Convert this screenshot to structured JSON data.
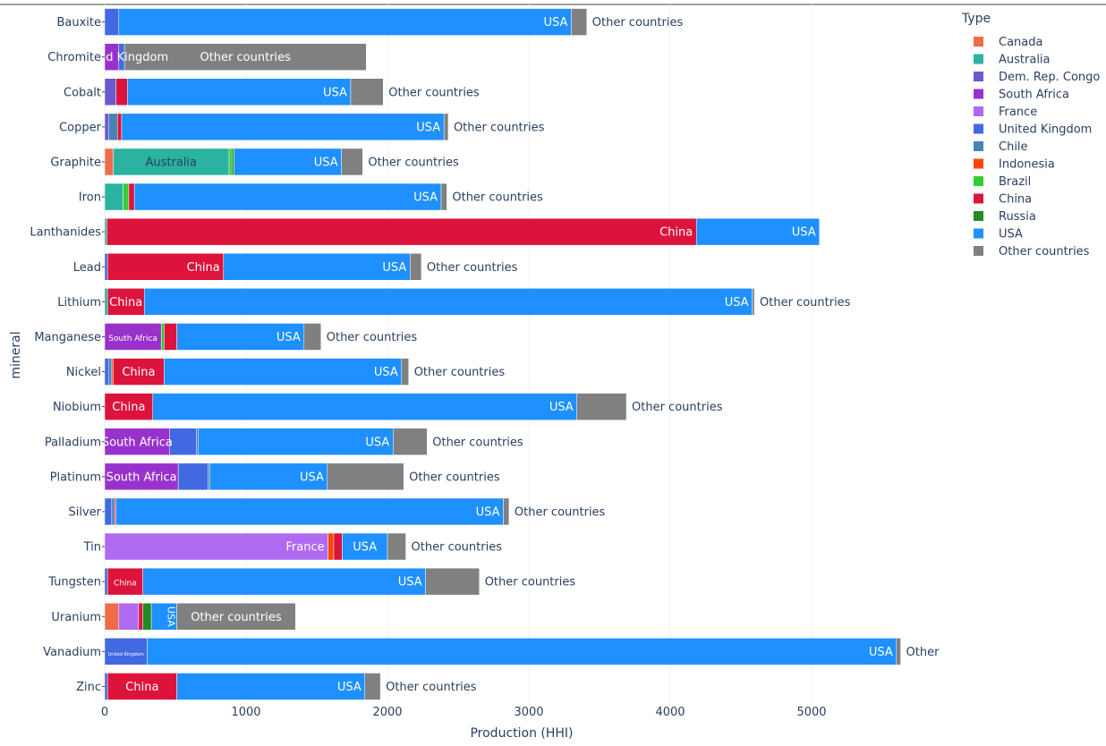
{
  "chart_data": {
    "type": "bar",
    "orientation": "horizontal",
    "barmode": "stack",
    "title": "",
    "xlabel": "Production (HHI)",
    "ylabel": "mineral",
    "xlim": [
      0,
      5700
    ],
    "x_ticks": [
      0,
      1000,
      2000,
      3000,
      4000,
      5000
    ],
    "grid": true,
    "legend_title": "Type",
    "legend_position": "right",
    "categories": [
      "Bauxite",
      "Chromite",
      "Cobalt",
      "Copper",
      "Graphite",
      "Iron",
      "Lanthanides",
      "Lead",
      "Lithium",
      "Manganese",
      "Nickel",
      "Niobium",
      "Palladium",
      "Platinum",
      "Silver",
      "Tin",
      "Tungsten",
      "Uranium",
      "Vanadium",
      "Zinc"
    ],
    "colors": {
      "Canada": "#ef6c4a",
      "Australia": "#2ab3a0",
      "Dem. Rep. Congo": "#6a5acd",
      "South Africa": "#9932cc",
      "France": "#b06af2",
      "United Kingdom": "#4169e1",
      "Chile": "#4682b4",
      "Indonesia": "#ff4500",
      "Brazil": "#32cd32",
      "China": "#dc143c",
      "Russia": "#228b22",
      "USA": "#1e90ff",
      "Other countries": "#808080"
    },
    "series": [
      {
        "name": "Canada",
        "values": [
          0,
          0,
          0,
          0,
          60,
          0,
          0,
          0,
          0,
          0,
          0,
          0,
          0,
          0,
          0,
          0,
          0,
          100,
          0,
          0
        ]
      },
      {
        "name": "Australia",
        "values": [
          0,
          0,
          0,
          0,
          820,
          130,
          15,
          0,
          20,
          0,
          0,
          0,
          0,
          0,
          0,
          0,
          0,
          0,
          0,
          0
        ]
      },
      {
        "name": "Dem. Rep. Congo",
        "values": [
          0,
          0,
          80,
          30,
          0,
          0,
          0,
          0,
          0,
          0,
          0,
          0,
          0,
          0,
          0,
          0,
          0,
          0,
          0,
          0
        ]
      },
      {
        "name": "South Africa",
        "values": [
          0,
          100,
          0,
          0,
          0,
          0,
          0,
          0,
          0,
          400,
          0,
          0,
          460,
          520,
          0,
          0,
          0,
          0,
          0,
          0
        ]
      },
      {
        "name": "France",
        "values": [
          0,
          0,
          0,
          0,
          0,
          0,
          0,
          0,
          0,
          0,
          0,
          0,
          0,
          0,
          0,
          1580,
          0,
          140,
          0,
          0
        ]
      },
      {
        "name": "United Kingdom",
        "values": [
          100,
          40,
          0,
          0,
          0,
          0,
          0,
          20,
          0,
          0,
          30,
          0,
          190,
          210,
          50,
          0,
          20,
          0,
          300,
          20
        ]
      },
      {
        "name": "Chile",
        "values": [
          0,
          0,
          0,
          60,
          0,
          0,
          0,
          0,
          0,
          0,
          20,
          0,
          10,
          15,
          20,
          0,
          0,
          0,
          0,
          0
        ]
      },
      {
        "name": "Indonesia",
        "values": [
          0,
          0,
          0,
          0,
          0,
          0,
          0,
          0,
          0,
          0,
          10,
          0,
          0,
          0,
          0,
          40,
          0,
          0,
          0,
          0
        ]
      },
      {
        "name": "Brazil",
        "values": [
          0,
          0,
          0,
          0,
          20,
          40,
          0,
          0,
          0,
          20,
          0,
          0,
          0,
          0,
          0,
          0,
          0,
          0,
          0,
          0
        ]
      },
      {
        "name": "China",
        "values": [
          0,
          0,
          80,
          30,
          0,
          40,
          4170,
          820,
          260,
          90,
          360,
          340,
          0,
          0,
          10,
          60,
          250,
          30,
          0,
          490
        ]
      },
      {
        "name": "Russia",
        "values": [
          0,
          0,
          0,
          0,
          15,
          0,
          0,
          0,
          0,
          0,
          0,
          0,
          0,
          0,
          0,
          0,
          0,
          60,
          0,
          0
        ]
      },
      {
        "name": "USA",
        "values": [
          3200,
          0,
          1580,
          2280,
          760,
          2170,
          870,
          1320,
          4300,
          900,
          1680,
          3000,
          1380,
          830,
          2740,
          320,
          2000,
          180,
          5300,
          1330
        ]
      },
      {
        "name": "Other countries",
        "values": [
          110,
          1710,
          230,
          30,
          150,
          40,
          0,
          80,
          15,
          120,
          50,
          350,
          240,
          540,
          40,
          130,
          380,
          840,
          30,
          110
        ]
      }
    ],
    "bar_labels": [
      {
        "category": "Bauxite",
        "series": "USA",
        "text": "USA",
        "inside": true
      },
      {
        "category": "Bauxite",
        "series": "Other countries",
        "text": "Other countries",
        "inside": false
      },
      {
        "category": "Chromite",
        "series": "United Kingdom",
        "text": "United Kingdom",
        "inside": true
      },
      {
        "category": "Chromite",
        "series": "Other countries",
        "text": "Other countries",
        "inside": true
      },
      {
        "category": "Cobalt",
        "series": "USA",
        "text": "USA",
        "inside": true
      },
      {
        "category": "Cobalt",
        "series": "Other countries",
        "text": "Other countries",
        "inside": false
      },
      {
        "category": "Copper",
        "series": "USA",
        "text": "USA",
        "inside": true
      },
      {
        "category": "Copper",
        "series": "Other countries",
        "text": "Other countries",
        "inside": false
      },
      {
        "category": "Graphite",
        "series": "Australia",
        "text": "Australia",
        "inside": true
      },
      {
        "category": "Graphite",
        "series": "USA",
        "text": "USA",
        "inside": true
      },
      {
        "category": "Graphite",
        "series": "Other countries",
        "text": "Other countries",
        "inside": false
      },
      {
        "category": "Iron",
        "series": "USA",
        "text": "USA",
        "inside": true
      },
      {
        "category": "Iron",
        "series": "Other countries",
        "text": "Other countries",
        "inside": false
      },
      {
        "category": "Lanthanides",
        "series": "China",
        "text": "China",
        "inside": true
      },
      {
        "category": "Lanthanides",
        "series": "USA",
        "text": "USA",
        "inside": true
      },
      {
        "category": "Lead",
        "series": "China",
        "text": "China",
        "inside": true
      },
      {
        "category": "Lead",
        "series": "USA",
        "text": "USA",
        "inside": true
      },
      {
        "category": "Lead",
        "series": "Other countries",
        "text": "Other countries",
        "inside": false
      },
      {
        "category": "Lithium",
        "series": "China",
        "text": "China",
        "inside": true
      },
      {
        "category": "Lithium",
        "series": "USA",
        "text": "USA",
        "inside": true
      },
      {
        "category": "Lithium",
        "series": "Other countries",
        "text": "Other countries",
        "inside": false
      },
      {
        "category": "Manganese",
        "series": "South Africa",
        "text": "South Africa",
        "inside": true,
        "small": true
      },
      {
        "category": "Manganese",
        "series": "USA",
        "text": "USA",
        "inside": true
      },
      {
        "category": "Manganese",
        "series": "Other countries",
        "text": "Other countries",
        "inside": false
      },
      {
        "category": "Nickel",
        "series": "China",
        "text": "China",
        "inside": true
      },
      {
        "category": "Nickel",
        "series": "USA",
        "text": "USA",
        "inside": true
      },
      {
        "category": "Nickel",
        "series": "Other countries",
        "text": "Other countries",
        "inside": false
      },
      {
        "category": "Niobium",
        "series": "China",
        "text": "China",
        "inside": true
      },
      {
        "category": "Niobium",
        "series": "USA",
        "text": "USA",
        "inside": true
      },
      {
        "category": "Niobium",
        "series": "Other countries",
        "text": "Other countries",
        "inside": false
      },
      {
        "category": "Palladium",
        "series": "South Africa",
        "text": "South Africa",
        "inside": true
      },
      {
        "category": "Palladium",
        "series": "USA",
        "text": "USA",
        "inside": true
      },
      {
        "category": "Palladium",
        "series": "Other countries",
        "text": "Other countries",
        "inside": false
      },
      {
        "category": "Platinum",
        "series": "South Africa",
        "text": "South Africa",
        "inside": true
      },
      {
        "category": "Platinum",
        "series": "USA",
        "text": "USA",
        "inside": true
      },
      {
        "category": "Platinum",
        "series": "Other countries",
        "text": "Other countries",
        "inside": false
      },
      {
        "category": "Silver",
        "series": "USA",
        "text": "USA",
        "inside": true
      },
      {
        "category": "Silver",
        "series": "Other countries",
        "text": "Other countries",
        "inside": false
      },
      {
        "category": "Tin",
        "series": "France",
        "text": "France",
        "inside": true
      },
      {
        "category": "Tin",
        "series": "USA",
        "text": "USA",
        "inside": true
      },
      {
        "category": "Tin",
        "series": "Other countries",
        "text": "Other countries",
        "inside": false
      },
      {
        "category": "Tungsten",
        "series": "China",
        "text": "China",
        "inside": true,
        "small": true
      },
      {
        "category": "Tungsten",
        "series": "USA",
        "text": "USA",
        "inside": true
      },
      {
        "category": "Tungsten",
        "series": "Other countries",
        "text": "Other countries",
        "inside": false
      },
      {
        "category": "Uranium",
        "series": "USA",
        "text": "USA",
        "inside": true,
        "rotated": true
      },
      {
        "category": "Uranium",
        "series": "Other countries",
        "text": "Other countries",
        "inside": true
      },
      {
        "category": "Vanadium",
        "series": "United Kingdom",
        "text": "United Kingdom",
        "inside": true,
        "tiny": true
      },
      {
        "category": "Vanadium",
        "series": "USA",
        "text": "USA",
        "inside": true
      },
      {
        "category": "Vanadium",
        "series": "Other countries",
        "text": "Other",
        "inside": false
      },
      {
        "category": "Zinc",
        "series": "China",
        "text": "China",
        "inside": true
      },
      {
        "category": "Zinc",
        "series": "USA",
        "text": "USA",
        "inside": true
      },
      {
        "category": "Zinc",
        "series": "Other countries",
        "text": "Other countries",
        "inside": false
      }
    ]
  }
}
